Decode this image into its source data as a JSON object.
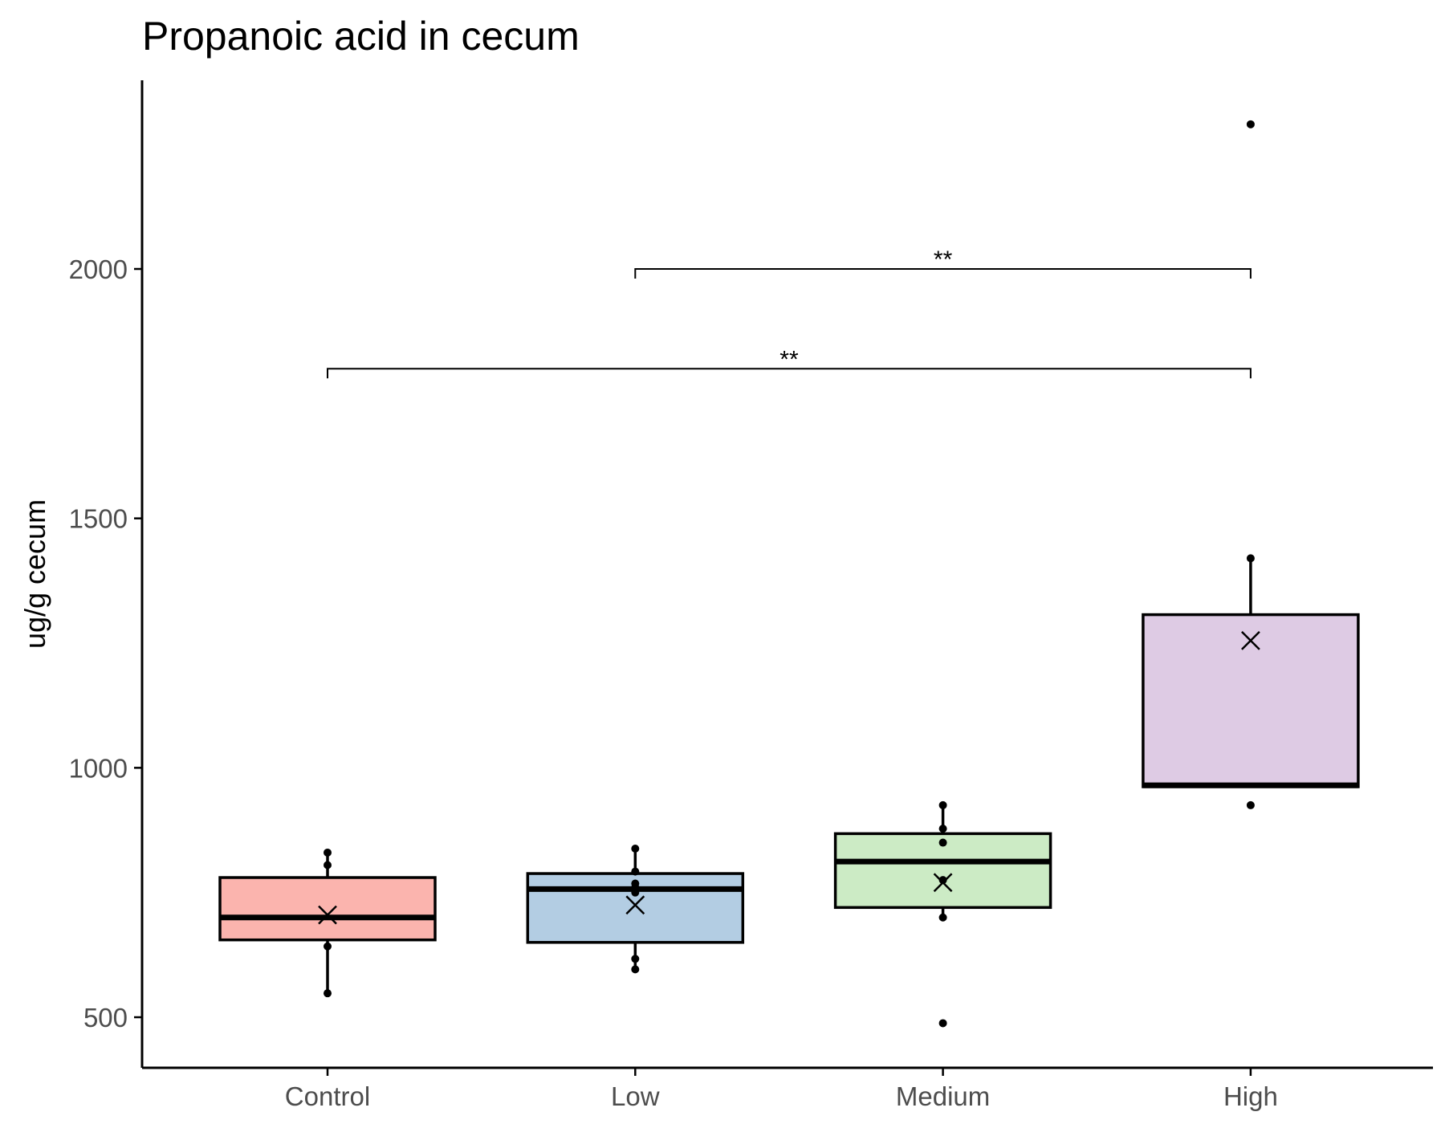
{
  "chart_data": {
    "type": "box",
    "title": "Propanoic acid in cecum",
    "xlabel": "",
    "ylabel": "ug/g cecum",
    "ylim": [
      400,
      2350
    ],
    "yticks": [
      500,
      1000,
      1500,
      2000
    ],
    "grid": false,
    "legend": "none",
    "categories": [
      "Control",
      "Low",
      "Medium",
      "High"
    ],
    "colors": [
      "#FBB4AE",
      "#B3CDE3",
      "#CCEBC5",
      "#DECBE4"
    ],
    "boxes": [
      {
        "q1": 655,
        "median": 700,
        "q3": 780,
        "whisker_low": 548,
        "whisker_high": 830,
        "mean": 705,
        "points": [
          548,
          642,
          805,
          830
        ]
      },
      {
        "q1": 650,
        "median": 757,
        "q3": 788,
        "whisker_low": 596,
        "whisker_high": 838,
        "mean": 725,
        "points": [
          596,
          617,
          750,
          760,
          768,
          792,
          838
        ]
      },
      {
        "q1": 720,
        "median": 812,
        "q3": 868,
        "whisker_low": 700,
        "whisker_high": 925,
        "mean": 770,
        "points": [
          488,
          700,
          775,
          850,
          878,
          925
        ]
      },
      {
        "q1": 962,
        "median": 965,
        "q3": 1307,
        "whisker_low": 962,
        "whisker_high": 1420,
        "mean": 1255,
        "points": [
          925,
          2290,
          1420
        ]
      }
    ],
    "significance": [
      {
        "from": "Control",
        "to": "High",
        "y": 1800,
        "label": "**"
      },
      {
        "from": "Low",
        "to": "High",
        "y": 2000,
        "label": "**"
      }
    ]
  }
}
